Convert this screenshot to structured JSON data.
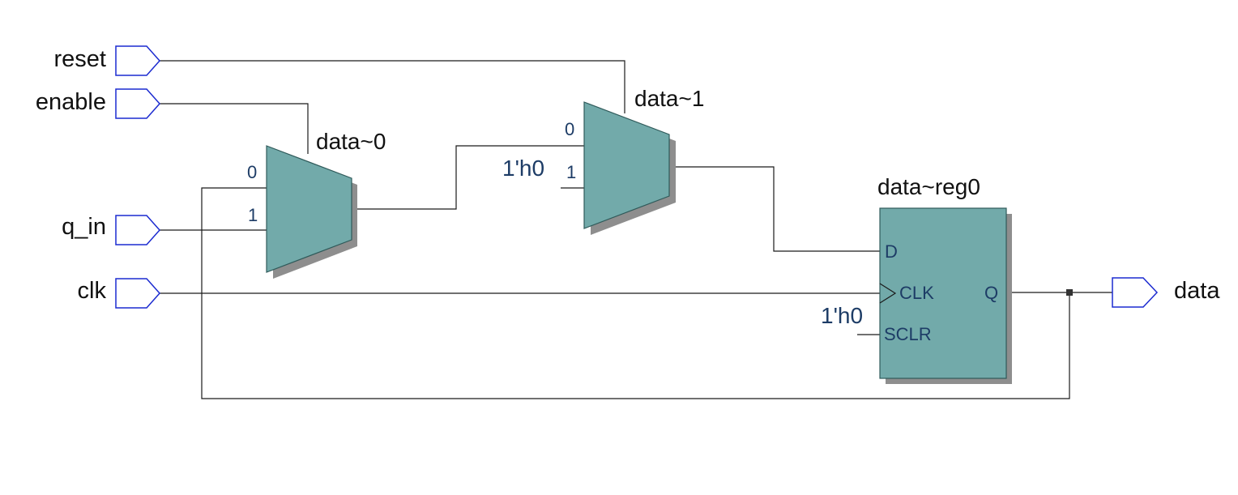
{
  "diagram": {
    "inputs": {
      "reset": "reset",
      "enable": "enable",
      "q_in": "q_in",
      "clk": "clk"
    },
    "outputs": {
      "data": "data"
    },
    "mux0": {
      "name": "data~0",
      "pin0": "0",
      "pin1": "1"
    },
    "mux1": {
      "name": "data~1",
      "pin0": "0",
      "pin1": "1",
      "const1": "1'h0"
    },
    "reg": {
      "name": "data~reg0",
      "pin_d": "D",
      "pin_clk": "CLK",
      "pin_sclr": "SCLR",
      "pin_q": "Q",
      "const_sclr": "1'h0"
    },
    "colors": {
      "block_fill": "#72aaaa",
      "port_stroke": "#1c2bd0",
      "pin_text": "#1d3c66"
    }
  }
}
